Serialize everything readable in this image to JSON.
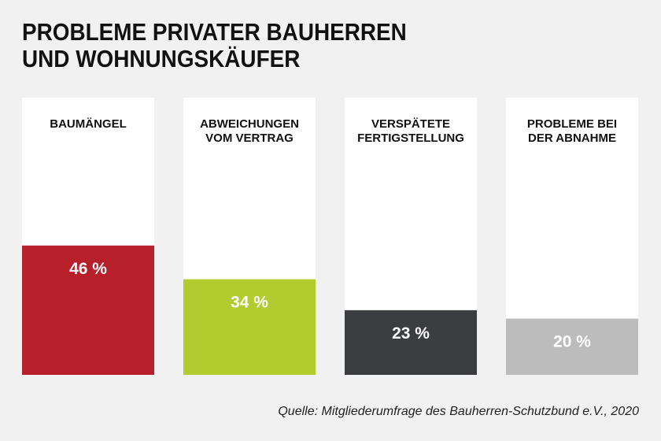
{
  "title_lines": [
    "PROBLEME PRIVATER BAUHERREN",
    "UND WOHNUNGSKÄUFER"
  ],
  "source": "Quelle: Mitgliederumfrage des Bauherren-Schutzbund e.V., 2020",
  "colors": {
    "background": "#f1f1f1",
    "column_background": "#ffffff",
    "text": "#111111",
    "value_text": "#ffffff"
  },
  "chart_data": {
    "type": "bar",
    "title": "PROBLEME PRIVATER BAUHERREN UND WOHNUNGSKÄUFER",
    "categories": [
      [
        "BAUMÄNGEL"
      ],
      [
        "ABWEICHUNGEN",
        "VOM VERTRAG"
      ],
      [
        "VERSPÄTETE",
        "FERTIGSTELLUNG"
      ],
      [
        "PROBLEME BEI",
        "DER ABNAHME"
      ]
    ],
    "values": [
      46,
      34,
      23,
      20
    ],
    "value_labels": [
      "46 %",
      "34 %",
      "23 %",
      "20 %"
    ],
    "bar_colors": [
      "#b71f2a",
      "#b2cb2f",
      "#3c3d40",
      "#bcbcbc"
    ],
    "unit": "%",
    "ylim": [
      0,
      100
    ],
    "grid": false,
    "legend": "none"
  }
}
